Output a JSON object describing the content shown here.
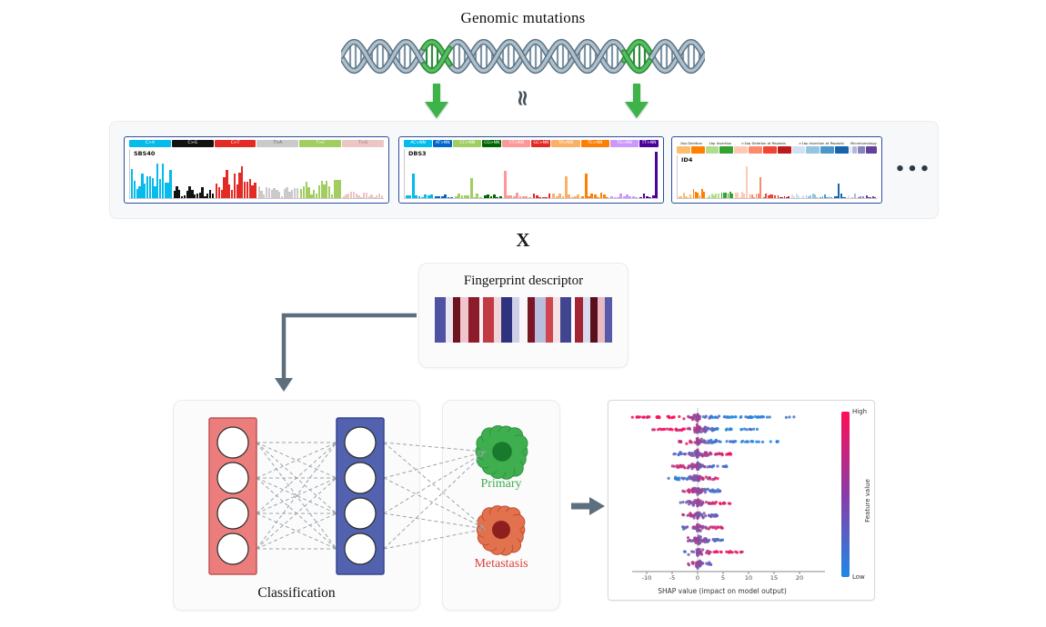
{
  "title": "Genomic mutations",
  "symbols": {
    "approx": "≈",
    "multiply": "X",
    "ellipsis": "•••"
  },
  "colors": {
    "green_arrow": "#3cb44a",
    "helix_dark": "#5c7283",
    "helix_light": "#adc0cc",
    "helix_green_dark": "#2e8b3a",
    "helix_green_light": "#52c15e",
    "slate_arrow": "#5d6f7d",
    "nn_red_fill": "#ec7d7d",
    "nn_red_stroke": "#c05555",
    "nn_blue_fill": "#5262ae",
    "nn_blue_stroke": "#36458f",
    "primary_green": "#3fae4f",
    "primary_core": "#187a2c",
    "metastasis_orange": "#e2714e",
    "metastasis_core": "#8e1f1f",
    "metastasis_text": "#d64541",
    "sig_border": "#2d4d9e",
    "shap_pink": "#ff0d57",
    "shap_blue": "#1e88e5"
  },
  "signature_panels": [
    {
      "name": "SBS40",
      "categories": [
        {
          "label": "C>A",
          "color": "#04BBEC",
          "bars": 16,
          "mean": 0.45,
          "var": 0.3
        },
        {
          "label": "C>G",
          "color": "#121212",
          "bars": 16,
          "mean": 0.15,
          "var": 0.12
        },
        {
          "label": "C>T",
          "color": "#E42A25",
          "bars": 16,
          "mean": 0.4,
          "var": 0.28
        },
        {
          "label": "T>A",
          "color": "#CBC9CA",
          "bars": 16,
          "mean": 0.14,
          "var": 0.1,
          "tc": "#555"
        },
        {
          "label": "T>C",
          "color": "#A2CD61",
          "bars": 16,
          "mean": 0.22,
          "var": 0.15
        },
        {
          "label": "T>G",
          "color": "#ECC5C5",
          "bars": 16,
          "mean": 0.08,
          "var": 0.06,
          "tc": "#777"
        }
      ]
    },
    {
      "name": "DBS3",
      "categories": [
        {
          "label": "AC>NN",
          "color": "#03BCEE",
          "bars": 9,
          "mean": 0.05,
          "var": 0.05,
          "spikes": {
            "2": 0.5
          }
        },
        {
          "label": "AT>NN",
          "color": "#0265CB",
          "bars": 6,
          "mean": 0.04,
          "var": 0.04
        },
        {
          "label": "CC>NN",
          "color": "#9FCE62",
          "bars": 9,
          "mean": 0.05,
          "var": 0.05,
          "spikes": {
            "5": 0.4
          }
        },
        {
          "label": "CG>NN",
          "color": "#016501",
          "bars": 6,
          "mean": 0.04,
          "var": 0.04
        },
        {
          "label": "CT>NN",
          "color": "#FD9898",
          "bars": 9,
          "mean": 0.06,
          "var": 0.06,
          "spikes": {
            "0": 0.55
          }
        },
        {
          "label": "GC>NN",
          "color": "#E22925",
          "bars": 6,
          "mean": 0.05,
          "var": 0.05
        },
        {
          "label": "TA>NN",
          "color": "#FCB065",
          "bars": 9,
          "mean": 0.05,
          "var": 0.05,
          "spikes": {
            "4": 0.45
          }
        },
        {
          "label": "TC>NN",
          "color": "#FD8005",
          "bars": 9,
          "mean": 0.06,
          "var": 0.06,
          "spikes": {
            "1": 0.5
          }
        },
        {
          "label": "TG>NN",
          "color": "#CB98FD",
          "bars": 9,
          "mean": 0.05,
          "var": 0.05
        },
        {
          "label": "TT>NN",
          "color": "#4C0199",
          "bars": 6,
          "mean": 0.06,
          "var": 0.06,
          "spikes": {
            "5": 0.95
          }
        }
      ]
    },
    {
      "name": "ID4",
      "group_labels": [
        {
          "label": "1bp Deletion",
          "span": 2
        },
        {
          "label": "1bp Insertion",
          "span": 2
        },
        {
          "label": ">1bp Deletion at Repeats",
          "span": 4
        },
        {
          "label": ">1bp Insertion at Repeats",
          "span": 4
        },
        {
          "label": "Microhomology",
          "span": 4
        }
      ],
      "categories": [
        {
          "label": "",
          "color": "#FCBD6F",
          "bars": 6,
          "mean": 0.08,
          "var": 0.07
        },
        {
          "label": "",
          "color": "#FF8001",
          "bars": 6,
          "mean": 0.12,
          "var": 0.1
        },
        {
          "label": "",
          "color": "#B0DD8B",
          "bars": 6,
          "mean": 0.07,
          "var": 0.06
        },
        {
          "label": "",
          "color": "#36A12E",
          "bars": 6,
          "mean": 0.1,
          "var": 0.08
        },
        {
          "label": "",
          "color": "#FDC9B4",
          "bars": 6,
          "mean": 0.1,
          "var": 0.1,
          "spikes": {
            "5": 0.75
          }
        },
        {
          "label": "",
          "color": "#FB8A6B",
          "bars": 6,
          "mean": 0.08,
          "var": 0.08,
          "spikes": {
            "5": 0.5
          }
        },
        {
          "label": "",
          "color": "#F14432",
          "bars": 6,
          "mean": 0.06,
          "var": 0.05
        },
        {
          "label": "",
          "color": "#BC1A1A",
          "bars": 6,
          "mean": 0.05,
          "var": 0.05
        },
        {
          "label": "",
          "color": "#D0E1F2",
          "bars": 6,
          "mean": 0.06,
          "var": 0.05
        },
        {
          "label": "",
          "color": "#94C4DF",
          "bars": 6,
          "mean": 0.05,
          "var": 0.05
        },
        {
          "label": "",
          "color": "#4A98C9",
          "bars": 6,
          "mean": 0.05,
          "var": 0.04
        },
        {
          "label": "",
          "color": "#1764AB",
          "bars": 6,
          "mean": 0.07,
          "var": 0.06,
          "spikes": {
            "2": 0.35
          }
        },
        {
          "label": "",
          "color": "#E2E2EF",
          "bars": 1,
          "mean": 0.1,
          "var": 0.08
        },
        {
          "label": "",
          "color": "#B6B6D8",
          "bars": 2,
          "mean": 0.08,
          "var": 0.06
        },
        {
          "label": "",
          "color": "#8683BD",
          "bars": 3,
          "mean": 0.06,
          "var": 0.05
        },
        {
          "label": "",
          "color": "#62409B",
          "bars": 5,
          "mean": 0.05,
          "var": 0.05
        }
      ]
    }
  ],
  "fingerprint": {
    "title": "Fingerprint descriptor",
    "stripes": [
      {
        "c": "#4f52a3",
        "w": 3
      },
      {
        "c": "#e9e7f2",
        "w": 2
      },
      {
        "c": "#6e1320",
        "w": 2
      },
      {
        "c": "#f0c6cc",
        "w": 2
      },
      {
        "c": "#8c1c2b",
        "w": 3
      },
      {
        "c": "#f7f3f4",
        "w": 1
      },
      {
        "c": "#c23a44",
        "w": 3
      },
      {
        "c": "#f2d4d8",
        "w": 2
      },
      {
        "c": "#2e3380",
        "w": 3
      },
      {
        "c": "#cdd0e8",
        "w": 2
      },
      {
        "c": "#faf7f8",
        "w": 2
      },
      {
        "c": "#7a1525",
        "w": 2
      },
      {
        "c": "#b9bedf",
        "w": 3
      },
      {
        "c": "#d04550",
        "w": 2
      },
      {
        "c": "#f3e1e4",
        "w": 2
      },
      {
        "c": "#3f458f",
        "w": 3
      },
      {
        "c": "#ffffff",
        "w": 1
      },
      {
        "c": "#a32433",
        "w": 2
      },
      {
        "c": "#d8daee",
        "w": 2
      },
      {
        "c": "#5a0f1d",
        "w": 2
      },
      {
        "c": "#eab9c1",
        "w": 2
      },
      {
        "c": "#565aa8",
        "w": 2
      }
    ]
  },
  "classification": {
    "label": "Classification"
  },
  "outputs": {
    "primary": "Primary",
    "metastasis": "Metastasis"
  },
  "shap": {
    "xlabel": "SHAP value (impact on model output)",
    "xticks": [
      -10,
      -5,
      0,
      5,
      10,
      15,
      20
    ],
    "colorbar": {
      "high": "High",
      "low": "Low",
      "label": "Feature value"
    },
    "rows": [
      {
        "l": -13,
        "r": 20,
        "n": 130,
        "corr": -0.9
      },
      {
        "l": -10,
        "r": 12,
        "n": 110,
        "corr": -0.6
      },
      {
        "l": -4,
        "r": 16,
        "n": 90,
        "corr": -0.7
      },
      {
        "l": -5,
        "r": 7,
        "n": 80,
        "corr": 0.5
      },
      {
        "l": -5,
        "r": 6,
        "n": 80,
        "corr": -0.5
      },
      {
        "l": -6,
        "r": 4,
        "n": 75,
        "corr": 0.6
      },
      {
        "l": -3,
        "r": 6,
        "n": 70,
        "corr": -0.4
      },
      {
        "l": -4,
        "r": 7,
        "n": 70,
        "corr": 0.4
      },
      {
        "l": -3,
        "r": 4,
        "n": 65,
        "corr": -0.5
      },
      {
        "l": -3,
        "r": 5,
        "n": 65,
        "corr": 0.5
      },
      {
        "l": -2,
        "r": 5,
        "n": 60,
        "corr": -0.4
      },
      {
        "l": -3,
        "r": 9,
        "n": 60,
        "corr": 0.6
      },
      {
        "l": -2,
        "r": 3,
        "n": 55,
        "corr": -0.3
      }
    ]
  }
}
